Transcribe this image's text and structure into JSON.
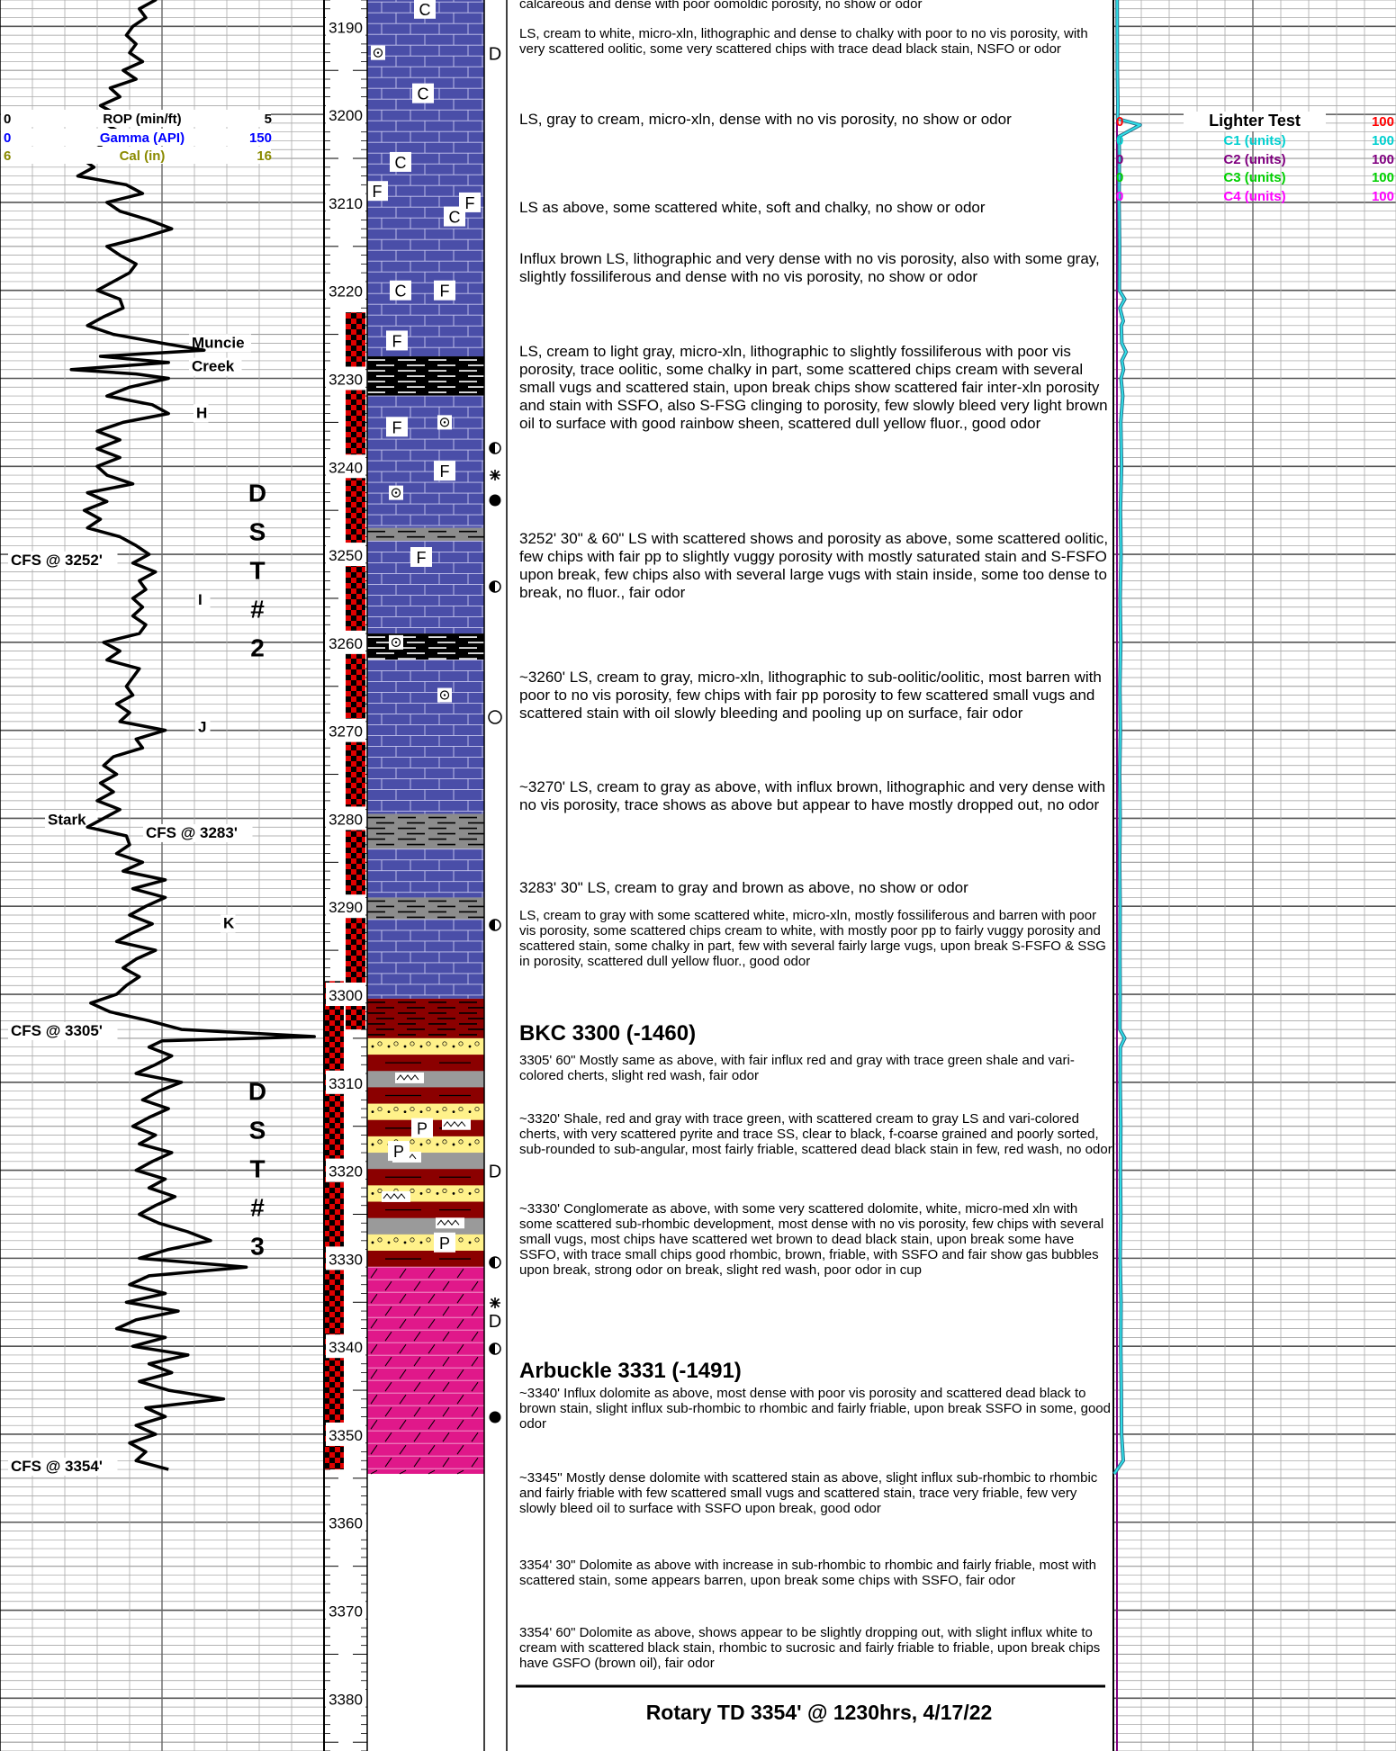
{
  "left_legend": [
    {
      "min": "0",
      "name": "ROP (min/ft)",
      "max": "5",
      "color": "#000000"
    },
    {
      "min": "0",
      "name": "Gamma (API)",
      "max": "150",
      "color": "#0000ff"
    },
    {
      "min": "6",
      "name": "Cal (in)",
      "max": "16",
      "color": "#8a8a00"
    }
  ],
  "right_legend": [
    {
      "min": "0",
      "name": "Lighter Test",
      "max": "100",
      "color": "#ff0000",
      "name_color": "#000000"
    },
    {
      "min": "0",
      "name": "C1 (units)",
      "max": "100",
      "color": "#00d0d0"
    },
    {
      "min": "0",
      "name": "C2 (units)",
      "max": "100",
      "color": "#800080"
    },
    {
      "min": "0",
      "name": "C3 (units)",
      "max": "100",
      "color": "#00d000"
    },
    {
      "min": "0",
      "name": "C4 (units)",
      "max": "100",
      "color": "#ff00ff"
    }
  ],
  "depths": [
    3190,
    3200,
    3210,
    3220,
    3230,
    3240,
    3250,
    3260,
    3270,
    3280,
    3290,
    3300,
    3310,
    3320,
    3330,
    3340,
    3350,
    3360,
    3370,
    3380
  ],
  "track_labels": [
    {
      "text": "Muncie",
      "depth": 3226.5
    },
    {
      "text": "Creek",
      "depth": 3229.2
    },
    {
      "text": "H",
      "depth": 3234.5
    },
    {
      "text": "CFS @ 3252'",
      "depth": 3251.2
    },
    {
      "text": "I",
      "depth": 3255.7
    },
    {
      "text": "J",
      "depth": 3270.2
    },
    {
      "text": "Stark",
      "depth": 3280.7
    },
    {
      "text": "CFS @ 3283'",
      "depth": 3282.2
    },
    {
      "text": "K",
      "depth": 3292.5
    },
    {
      "text": "CFS @ 3305'",
      "depth": 3304.7
    },
    {
      "text": "CFS @ 3354'",
      "depth": 3354.2
    }
  ],
  "dst_labels": [
    {
      "letters": [
        "D",
        "S",
        "T",
        "#",
        "2"
      ]
    },
    {
      "letters": [
        "D",
        "S",
        "T",
        "#",
        "3"
      ]
    }
  ],
  "lith_letters": [
    {
      "t": "C",
      "depth": 3188
    },
    {
      "t": "C",
      "depth": 3197.6
    },
    {
      "t": "C",
      "depth": 3205.4
    },
    {
      "t": "F",
      "depth": 3208.7
    },
    {
      "t": "F",
      "depth": 3210
    },
    {
      "t": "C",
      "depth": 3211.6
    },
    {
      "t": "C",
      "depth": 3220
    },
    {
      "t": "F",
      "depth": 3220
    },
    {
      "t": "F",
      "depth": 3225.7
    },
    {
      "t": "F",
      "depth": 3235.5
    },
    {
      "t": "F",
      "depth": 3240.5
    },
    {
      "t": "F",
      "depth": 3250.3
    },
    {
      "t": "P",
      "depth": 3315.2
    },
    {
      "t": "P",
      "depth": 3317.8
    },
    {
      "t": "P",
      "depth": 3328.2
    }
  ],
  "shows_letters": [
    {
      "t": "D",
      "depth": 3193
    },
    {
      "t": "D",
      "depth": 3320
    },
    {
      "t": "D",
      "depth": 3337
    }
  ],
  "descriptions": [
    {
      "text": "calcareous and dense with poor oomoldic porosity, no show or odor",
      "depth": 3186.8,
      "style": "small"
    },
    {
      "text": "LS, cream to white, micro-xln, lithographic and dense to chalky with poor to no vis porosity, with very scattered oolitic, some very scattered chips with trace dead black stain, NSFO or odor",
      "depth": 3190.2,
      "style": "small"
    },
    {
      "text": "LS, gray to cream, micro-xln, dense with no vis porosity, no show or odor",
      "depth": 3199.8,
      "style": "normal"
    },
    {
      "text": "LS as above, some scattered white, soft and chalky, no show or odor",
      "depth": 3209.8,
      "style": "normal"
    },
    {
      "text": "Influx brown LS, lithographic and very dense with no vis porosity, also with some gray, slightly fossiliferous and dense with no vis porosity, no show or odor",
      "depth": 3215.6,
      "style": "normal"
    },
    {
      "text": "LS, cream to light gray, micro-xln, lithographic to slightly fossiliferous with poor vis porosity, trace oolitic, some chalky in part, some scattered chips cream with several small vugs and scattered stain, upon break chips show scattered fair inter-xln porosity and stain with SSFO, also S-FSG clinging to porosity, few slowly bleed very light brown oil to surface with good rainbow sheen, scattered dull yellow fluor., good odor",
      "depth": 3226.2,
      "style": "normal"
    },
    {
      "text": "3252' 30\" & 60\" LS with scattered shows and porosity as above, some scattered oolitic, few chips with fair pp to slightly vuggy porosity with mostly saturated stain and S-FSFO upon break, few chips also with several large vugs with stain inside, some too dense to break, no fluor., fair odor",
      "depth": 3247.4,
      "style": "normal"
    },
    {
      "text": "~3260' LS, cream to gray, micro-xln, lithographic to sub-oolitic/oolitic, most barren with poor to no vis porosity, few chips with fair pp porosity to few scattered small vugs and scattered stain with oil slowly bleeding and pooling up on surface, fair odor",
      "depth": 3263.2,
      "style": "normal"
    },
    {
      "text": "~3270' LS, cream to gray as above, with influx brown, lithographic and very dense with no vis porosity, trace shows as above but  appear to have mostly dropped out, no odor",
      "depth": 3275.7,
      "style": "normal"
    },
    {
      "text": "3283' 30\" LS, cream to gray and brown as above, no show or odor",
      "depth": 3287.1,
      "style": "normal"
    },
    {
      "text": "LS, cream to gray with some scattered white, micro-xln, mostly fossiliferous and barren with poor vis porosity, some scattered chips cream to white, with mostly poor pp to fairly vuggy porosity and scattered stain, some chalky in part, few with several fairly large vugs, upon break S-FSFO & SSG in porosity, scattered dull yellow fluor., good odor",
      "depth": 3290.4,
      "style": "small"
    },
    {
      "text": "BKC  3300 (-1460)",
      "depth": 3303.3,
      "style": "formation"
    },
    {
      "text": "3305' 60\" Mostly same as above, with fair influx red and gray with trace green shale and vari-colored cherts, slight red wash, fair odor",
      "depth": 3306.8,
      "style": "small"
    },
    {
      "text": "~3320' Shale, red and gray with trace green, with scattered cream to gray LS and vari-colored cherts, with very scattered pyrite and trace SS, clear to black, f-coarse grained and poorly sorted, sub-rounded to sub-angular,  most fairly friable, scattered dead black stain in few, red wash, no odor",
      "depth": 3313.5,
      "style": "small"
    },
    {
      "text": "~3330' Conglomerate as above, with some very scattered dolomite, white, micro-med xln with some scattered sub-rhombic development, most dense with no vis porosity, few chips with several small vugs, most chips have scattered wet brown to dead black stain, upon break some have SSFO, with trace small chips good rhombic, brown, friable, with SSFO and fair show gas bubbles upon break, strong odor on break, slight red wash, poor odor in cup",
      "depth": 3323.7,
      "style": "small"
    },
    {
      "text": "Arbuckle  3331 (-1491)",
      "depth": 3341.6,
      "style": "formation"
    },
    {
      "text": "~3340'  Influx dolomite as above, most dense with poor vis porosity and scattered dead black to brown stain, slight influx sub-rhombic to rhombic and fairly friable, upon break SSFO in some, good odor",
      "depth": 3344.7,
      "style": "small"
    },
    {
      "text": "~3345'' Mostly dense dolomite with scattered stain as above, slight influx sub-rhombic to rhombic and fairly friable with few scattered small vugs and scattered stain, trace very friable, few very slowly bleed oil to surface with SSFO upon break, good odor",
      "depth": 3354.3,
      "style": "small"
    },
    {
      "text": "3354' 30\" Dolomite as above with increase in sub-rhombic to rhombic and fairly friable, most with scattered stain, some appears barren, upon break some chips with SSFO, fair odor",
      "depth": 3364.2,
      "style": "small"
    },
    {
      "text": "3354' 60\" Dolomite as above, shows appear to be slightly dropping out, with slight influx white to cream with scattered black stain, rhombic to sucrosic and fairly friable to friable, upon break chips have GSFO (brown oil), fair odor",
      "depth": 3371.9,
      "style": "small"
    }
  ],
  "rotary_td": "Rotary TD 3354' @ 1230hrs, 4/17/22",
  "depth_scale": {
    "top_depth": 3187,
    "bottom_depth": 3386
  },
  "lithology_intervals": [
    {
      "from": 3186,
      "to": 3227.5,
      "type": "limestone"
    },
    {
      "from": 3227.5,
      "to": 3232,
      "type": "black-shale"
    },
    {
      "from": 3232,
      "to": 3247,
      "type": "limestone"
    },
    {
      "from": 3247,
      "to": 3248.5,
      "type": "gray-shale"
    },
    {
      "from": 3248.5,
      "to": 3259,
      "type": "limestone"
    },
    {
      "from": 3259,
      "to": 3262,
      "type": "black-shale"
    },
    {
      "from": 3262,
      "to": 3279.5,
      "type": "limestone"
    },
    {
      "from": 3279.5,
      "to": 3283.5,
      "type": "gray-shale"
    },
    {
      "from": 3283.5,
      "to": 3289,
      "type": "limestone"
    },
    {
      "from": 3289,
      "to": 3291.5,
      "type": "gray-shale"
    },
    {
      "from": 3291.5,
      "to": 3300.5,
      "type": "limestone"
    },
    {
      "from": 3300.5,
      "to": 3305,
      "type": "red-gray-shale"
    },
    {
      "from": 3305,
      "to": 3331,
      "type": "conglomerate"
    },
    {
      "from": 3331,
      "to": 3354.5,
      "type": "dolomite"
    }
  ],
  "dst_intervals": [
    {
      "from": 3222.5,
      "to": 3304
    },
    {
      "from": 3298.5,
      "to": 3354
    }
  ],
  "rop_curve": [
    [
      3183,
      2.3
    ],
    [
      3184,
      1.95
    ],
    [
      3185,
      2.1
    ],
    [
      3186,
      2.35
    ],
    [
      3187,
      2.4
    ],
    [
      3188,
      2.15
    ],
    [
      3189,
      2.25
    ],
    [
      3190,
      2.05
    ],
    [
      3191,
      1.95
    ],
    [
      3192,
      2.1
    ],
    [
      3193,
      2.0
    ],
    [
      3194,
      2.2
    ],
    [
      3195,
      1.9
    ],
    [
      3196,
      2.1
    ],
    [
      3197,
      1.7
    ],
    [
      3198,
      1.85
    ],
    [
      3199,
      1.55
    ],
    [
      3200,
      1.8
    ],
    [
      3201,
      1.6
    ],
    [
      3202,
      1.85
    ],
    [
      3203,
      1.45
    ],
    [
      3204,
      1.6
    ],
    [
      3205,
      1.25
    ],
    [
      3206,
      1.45
    ],
    [
      3207,
      1.2
    ],
    [
      3208,
      1.95
    ],
    [
      3209,
      2.2
    ],
    [
      3210,
      1.65
    ],
    [
      3211,
      1.85
    ],
    [
      3212,
      2.3
    ],
    [
      3213,
      2.65
    ],
    [
      3214,
      2.2
    ],
    [
      3215,
      1.65
    ],
    [
      3216,
      1.85
    ],
    [
      3217,
      2.1
    ],
    [
      3218,
      2.0
    ],
    [
      3219,
      1.75
    ],
    [
      3220,
      1.5
    ],
    [
      3221,
      1.85
    ],
    [
      3222,
      1.9
    ],
    [
      3223,
      1.6
    ],
    [
      3224,
      1.35
    ],
    [
      3225,
      1.75
    ],
    [
      3226,
      2.5
    ],
    [
      3226.8,
      3.15
    ],
    [
      3227.5,
      1.55
    ],
    [
      3228.2,
      2.6
    ],
    [
      3229,
      1.1
    ],
    [
      3229.5,
      2.1
    ],
    [
      3230,
      2.6
    ],
    [
      3231,
      2.0
    ],
    [
      3232,
      1.65
    ],
    [
      3233,
      2.35
    ],
    [
      3234,
      2.6
    ],
    [
      3235,
      1.9
    ],
    [
      3236,
      1.5
    ],
    [
      3237,
      1.85
    ],
    [
      3238,
      1.5
    ],
    [
      3239,
      1.85
    ],
    [
      3240,
      1.5
    ],
    [
      3241,
      1.65
    ],
    [
      3242,
      2.05
    ],
    [
      3243,
      1.35
    ],
    [
      3244,
      1.65
    ],
    [
      3245,
      1.3
    ],
    [
      3246,
      1.55
    ],
    [
      3247,
      1.35
    ],
    [
      3248,
      1.85
    ],
    [
      3249,
      2.1
    ],
    [
      3250,
      2.3
    ],
    [
      3251,
      2.05
    ],
    [
      3252,
      2.4
    ],
    [
      3253,
      2.15
    ],
    [
      3254,
      2.25
    ],
    [
      3255,
      2.05
    ],
    [
      3256,
      2.2
    ],
    [
      3257,
      2.05
    ],
    [
      3258,
      2.25
    ],
    [
      3259,
      2.15
    ],
    [
      3260,
      1.6
    ],
    [
      3261,
      1.85
    ],
    [
      3262,
      1.65
    ],
    [
      3263,
      2.15
    ],
    [
      3264,
      2.05
    ],
    [
      3265,
      1.95
    ],
    [
      3266,
      2.05
    ],
    [
      3267,
      1.8
    ],
    [
      3268,
      2.0
    ],
    [
      3269,
      1.85
    ],
    [
      3270,
      2.55
    ],
    [
      3271,
      2.1
    ],
    [
      3272,
      2.2
    ],
    [
      3273,
      1.75
    ],
    [
      3274,
      1.6
    ],
    [
      3275,
      1.8
    ],
    [
      3276,
      1.55
    ],
    [
      3277,
      1.75
    ],
    [
      3278,
      1.5
    ],
    [
      3279,
      1.85
    ],
    [
      3280,
      1.6
    ],
    [
      3281,
      1.35
    ],
    [
      3282,
      1.95
    ],
    [
      3283,
      2.0
    ],
    [
      3284,
      1.8
    ],
    [
      3285,
      2.2
    ],
    [
      3286,
      1.9
    ],
    [
      3287,
      2.55
    ],
    [
      3288,
      2.05
    ],
    [
      3289,
      2.55
    ],
    [
      3290,
      2.25
    ],
    [
      3291,
      2.0
    ],
    [
      3292,
      2.35
    ],
    [
      3293,
      2.05
    ],
    [
      3294,
      1.8
    ],
    [
      3295,
      2.4
    ],
    [
      3296,
      2.1
    ],
    [
      3297,
      1.9
    ],
    [
      3298,
      2.15
    ],
    [
      3299,
      1.95
    ],
    [
      3300,
      1.8
    ],
    [
      3301,
      1.4
    ],
    [
      3302,
      1.7
    ],
    [
      3303,
      2.3
    ],
    [
      3304,
      2.8
    ],
    [
      3304.8,
      4.85
    ],
    [
      3305.3,
      2.5
    ],
    [
      3306,
      2.3
    ],
    [
      3307,
      2.65
    ],
    [
      3308,
      2.4
    ],
    [
      3309,
      2.1
    ],
    [
      3310,
      2.8
    ],
    [
      3311,
      2.45
    ],
    [
      3312,
      2.2
    ],
    [
      3313,
      2.6
    ],
    [
      3314,
      2.3
    ],
    [
      3315,
      2.05
    ],
    [
      3316,
      2.4
    ],
    [
      3317,
      2.15
    ],
    [
      3318,
      2.65
    ],
    [
      3319,
      2.35
    ],
    [
      3320,
      2.1
    ],
    [
      3321,
      2.55
    ],
    [
      3322,
      2.3
    ],
    [
      3323,
      2.7
    ],
    [
      3324,
      2.4
    ],
    [
      3325,
      2.15
    ],
    [
      3326,
      2.45
    ],
    [
      3327,
      2.9
    ],
    [
      3328,
      3.25
    ],
    [
      3329,
      2.6
    ],
    [
      3330,
      2.15
    ],
    [
      3331,
      3.8
    ],
    [
      3332,
      2.3
    ],
    [
      3333,
      2.0
    ],
    [
      3334,
      2.55
    ],
    [
      3335,
      1.95
    ],
    [
      3336,
      2.75
    ],
    [
      3337,
      2.1
    ],
    [
      3338,
      1.8
    ],
    [
      3339,
      2.55
    ],
    [
      3340,
      2.05
    ],
    [
      3341,
      2.9
    ],
    [
      3342,
      2.3
    ],
    [
      3343,
      2.65
    ],
    [
      3344,
      2.15
    ],
    [
      3345,
      2.6
    ],
    [
      3346,
      3.45
    ],
    [
      3347,
      2.25
    ],
    [
      3348,
      2.55
    ],
    [
      3349,
      2.1
    ],
    [
      3350,
      2.4
    ],
    [
      3351,
      2.0
    ],
    [
      3352,
      2.25
    ],
    [
      3353,
      2.1
    ],
    [
      3354,
      2.6
    ]
  ],
  "gas_curve": [
    [
      3183,
      1.3
    ],
    [
      3195,
      1.4
    ],
    [
      3199,
      1.6
    ],
    [
      3200.5,
      1.5
    ],
    [
      3201.2,
      9.5
    ],
    [
      3202.5,
      2.0
    ],
    [
      3205,
      2.1
    ],
    [
      3210,
      2.0
    ],
    [
      3215,
      2.2
    ],
    [
      3220,
      2.1
    ],
    [
      3221,
      4.0
    ],
    [
      3222,
      2.3
    ],
    [
      3223.5,
      3.5
    ],
    [
      3224,
      2.8
    ],
    [
      3226,
      3.0
    ],
    [
      3227,
      4.5
    ],
    [
      3228,
      3.0
    ],
    [
      3229,
      3.6
    ],
    [
      3230,
      2.7
    ],
    [
      3232,
      3.3
    ],
    [
      3235,
      2.6
    ],
    [
      3240,
      2.9
    ],
    [
      3245,
      2.5
    ],
    [
      3250,
      2.7
    ],
    [
      3255,
      2.4
    ],
    [
      3260,
      2.6
    ],
    [
      3265,
      2.3
    ],
    [
      3270,
      2.5
    ],
    [
      3275,
      2.2
    ],
    [
      3280,
      2.4
    ],
    [
      3285,
      2.2
    ],
    [
      3290,
      2.4
    ],
    [
      3295,
      2.3
    ],
    [
      3300,
      2.4
    ],
    [
      3304,
      2.3
    ],
    [
      3305,
      4.0
    ],
    [
      3306,
      2.5
    ],
    [
      3310,
      2.4
    ],
    [
      3315,
      2.6
    ],
    [
      3320,
      2.5
    ],
    [
      3325,
      2.6
    ],
    [
      3330,
      2.4
    ],
    [
      3335,
      2.7
    ],
    [
      3340,
      2.6
    ],
    [
      3345,
      2.8
    ],
    [
      3350,
      2.9
    ],
    [
      3353,
      3.5
    ],
    [
      3354.5,
      0.3
    ]
  ]
}
